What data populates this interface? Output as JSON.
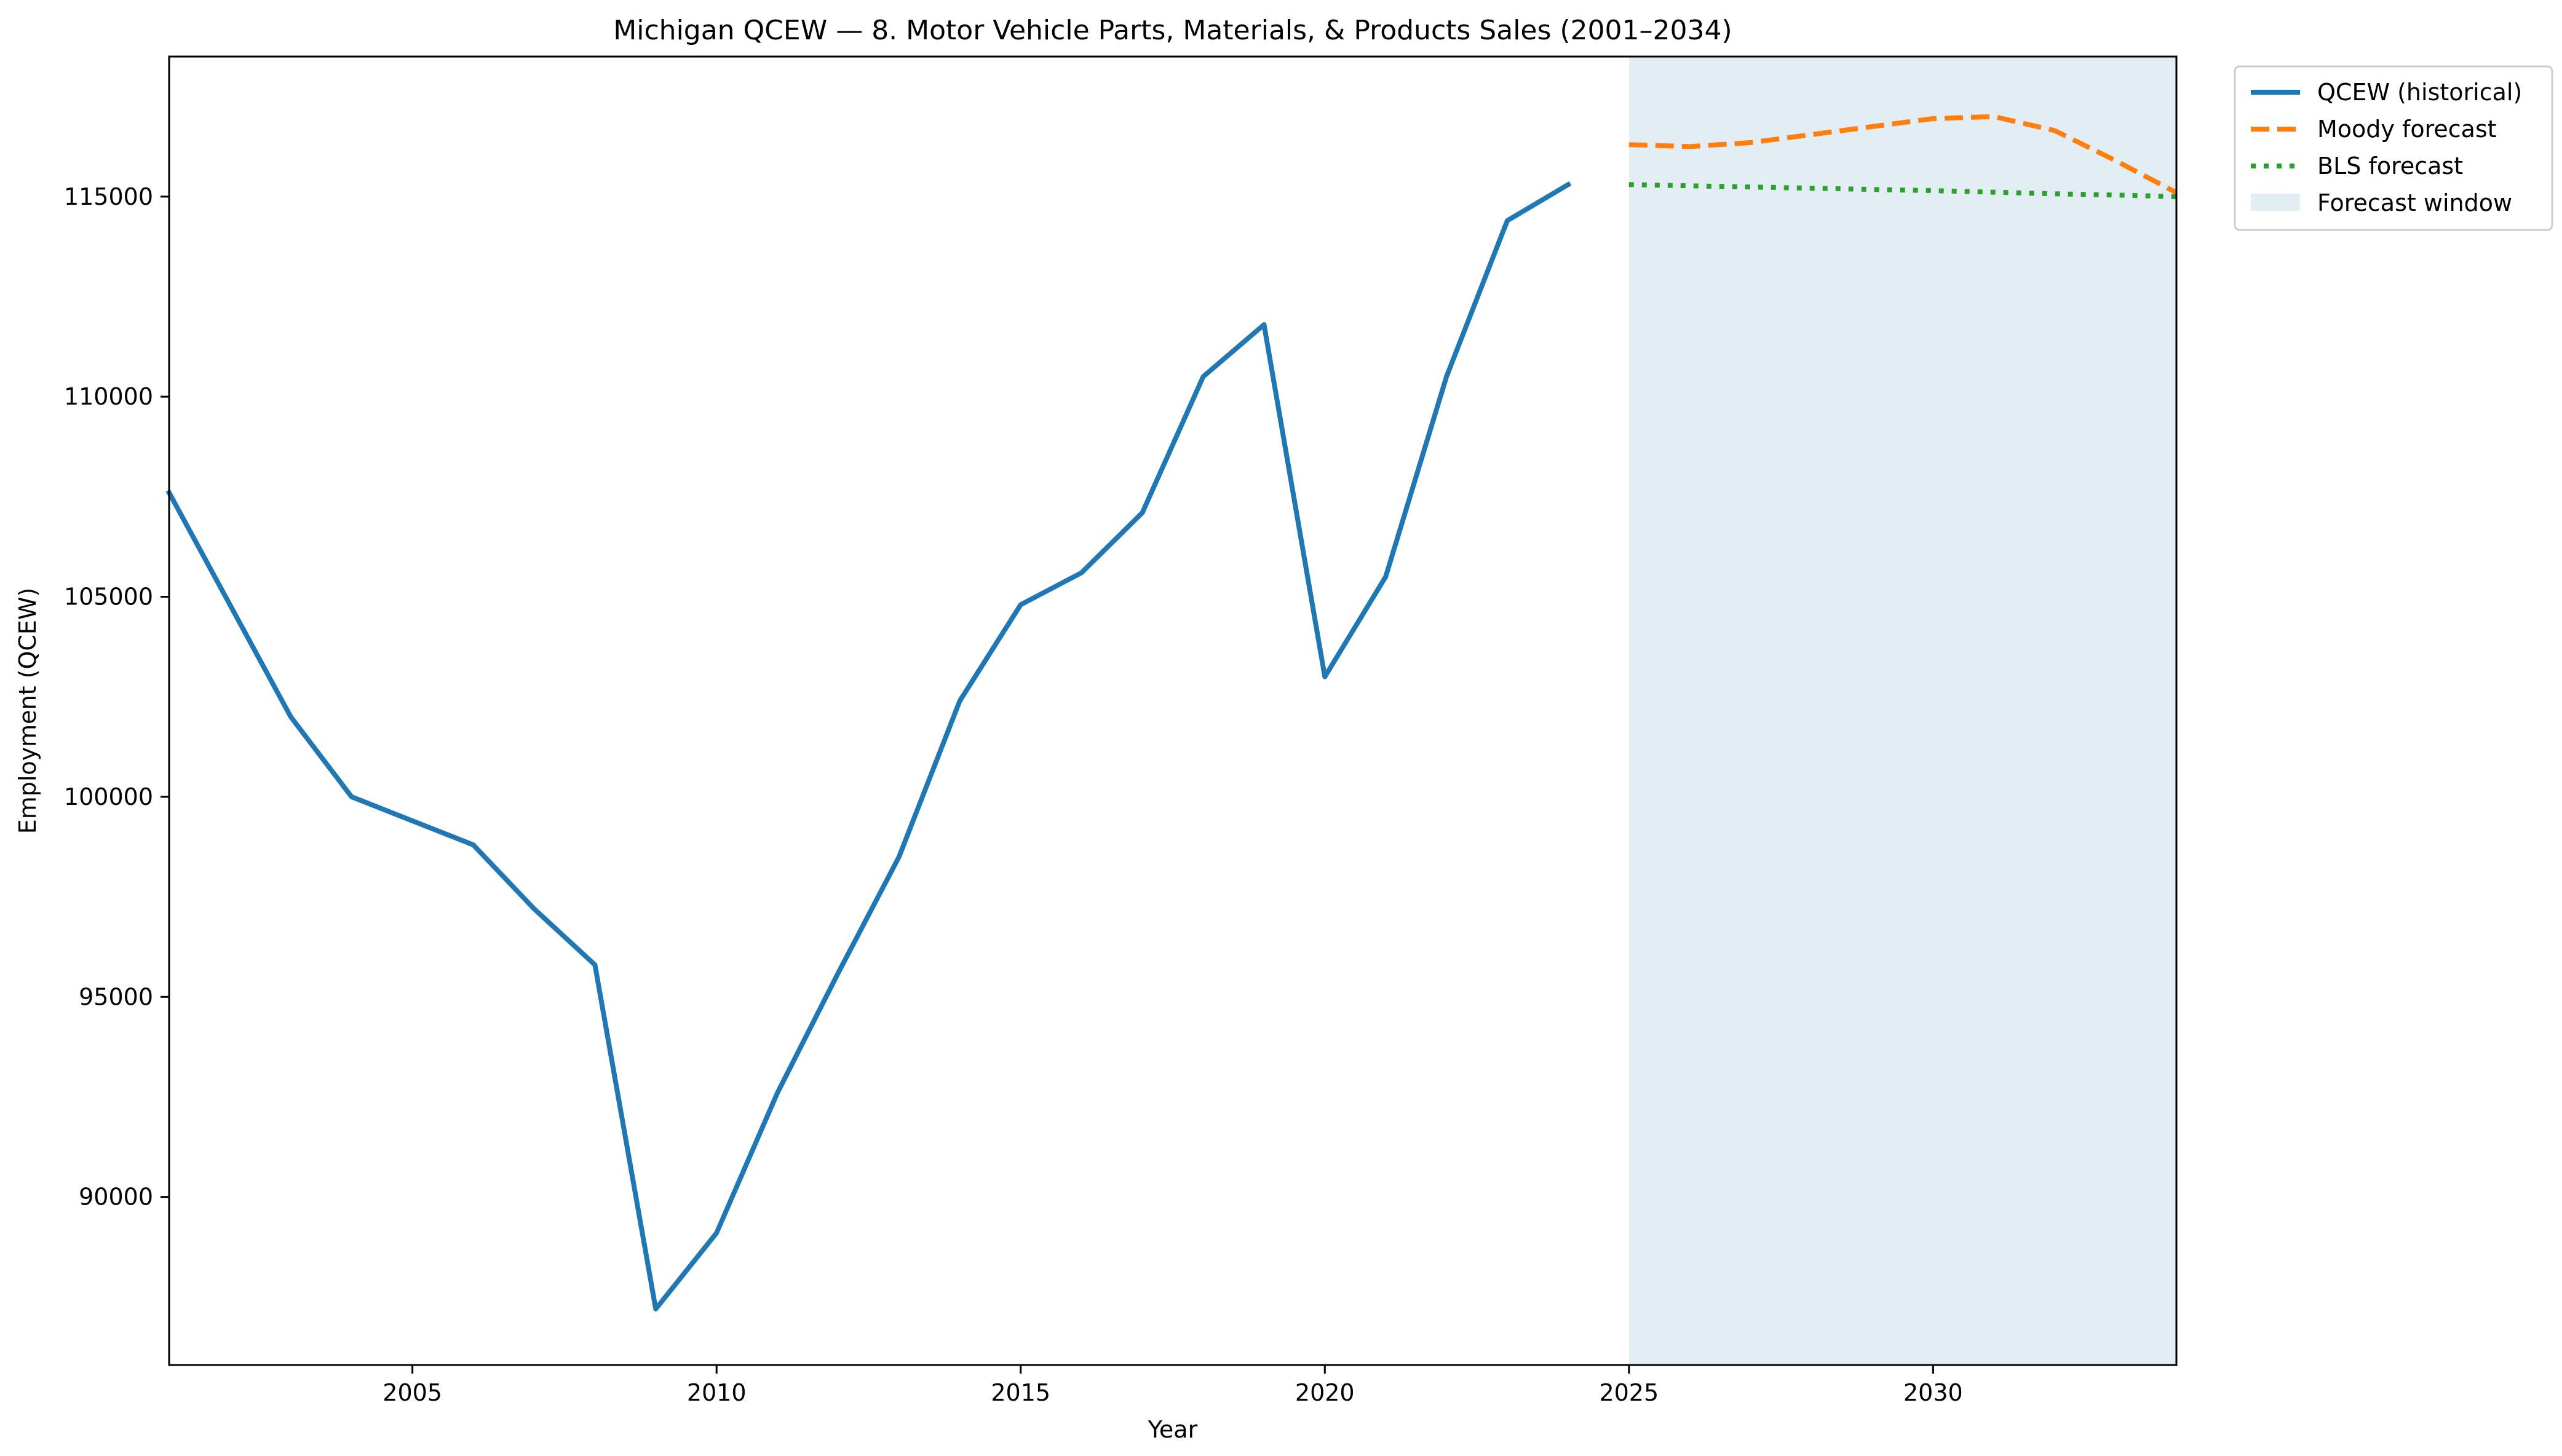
{
  "chart_data": {
    "type": "line",
    "title": "Michigan QCEW — 8. Motor Vehicle Parts, Materials, & Products Sales (2001–2034)",
    "xlabel": "Year",
    "ylabel": "Employment (QCEW)",
    "xlim": [
      2001,
      2034
    ],
    "ylim": [
      85800,
      118500
    ],
    "x_ticks": [
      2005,
      2010,
      2015,
      2020,
      2025,
      2030
    ],
    "y_ticks": [
      90000,
      95000,
      100000,
      105000,
      110000,
      115000
    ],
    "grid": false,
    "legend_position": "outside upper right",
    "forecast_window": {
      "label": "Forecast window",
      "start": 2025,
      "end": 2034,
      "color": "#e2edf4"
    },
    "series": [
      {
        "name": "QCEW (historical)",
        "style": "solid",
        "color": "#1f77b4",
        "x": [
          2001,
          2002,
          2003,
          2004,
          2005,
          2006,
          2007,
          2008,
          2009,
          2010,
          2011,
          2012,
          2013,
          2014,
          2015,
          2016,
          2017,
          2018,
          2019,
          2020,
          2021,
          2022,
          2023,
          2024
        ],
        "values": [
          107600,
          104800,
          102000,
          100000,
          99400,
          98800,
          97200,
          95800,
          87200,
          89100,
          92600,
          95600,
          98500,
          102400,
          104800,
          105600,
          107100,
          110500,
          111800,
          103000,
          105500,
          110500,
          114400,
          115300
        ]
      },
      {
        "name": "Moody forecast",
        "style": "dashed",
        "color": "#ff7f0e",
        "x": [
          2025,
          2026,
          2027,
          2028,
          2029,
          2030,
          2031,
          2032,
          2033,
          2034
        ],
        "values": [
          116300,
          116250,
          116350,
          116550,
          116750,
          116950,
          117000,
          116650,
          115900,
          115100
        ]
      },
      {
        "name": "BLS forecast",
        "style": "dotted",
        "color": "#2ca02c",
        "x": [
          2025,
          2026,
          2027,
          2028,
          2029,
          2030,
          2031,
          2032,
          2033,
          2034
        ],
        "values": [
          115300,
          115270,
          115240,
          115210,
          115180,
          115150,
          115110,
          115070,
          115040,
          115000
        ]
      }
    ]
  }
}
